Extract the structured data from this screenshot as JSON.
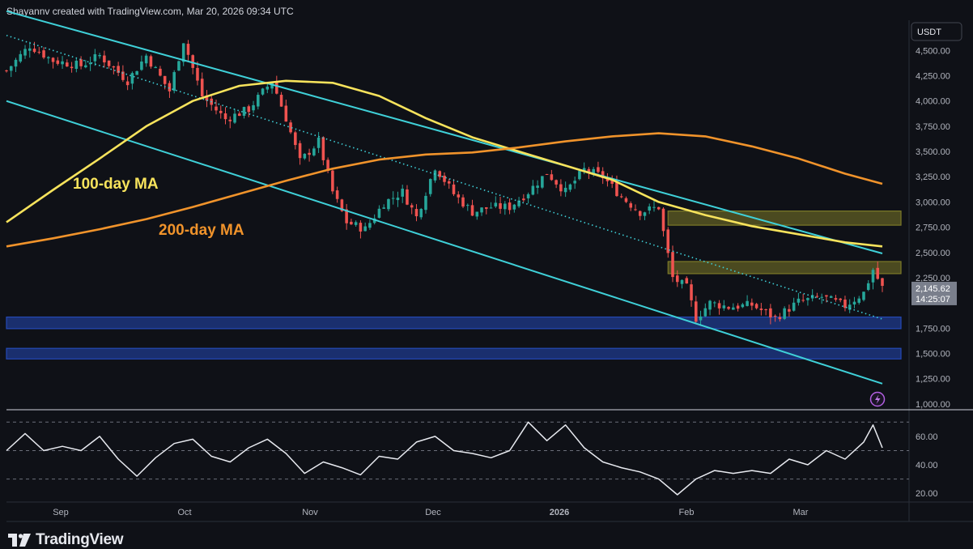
{
  "header": {
    "attribution": "Shayannv created with TradingView.com, Mar 20, 2026 09:34 UTC"
  },
  "brand": {
    "name": "TradingView",
    "icon": "tradingview-logo-icon"
  },
  "colors": {
    "background": "#0f1117",
    "candle_up": "#26a69a",
    "candle_down": "#ef5350",
    "ma100": "#f7e35c",
    "ma200": "#f0932b",
    "channel": "#3fd0d8",
    "zone_yellow": "#7d7a28",
    "zone_blue": "#2549b6",
    "rsi_line": "#e8eaf0",
    "price_badge": "#7a7f8c"
  },
  "chart_data": [
    {
      "type": "candlestick",
      "symbol_currency": "USDT",
      "x_labels": [
        "Sep",
        "Oct",
        "Nov",
        "Dec",
        "2026",
        "Feb",
        "Mar"
      ],
      "y_tick_labels": [
        "4,500.00",
        "4,250.00",
        "4,000.00",
        "3,750.00",
        "3,500.00",
        "3,250.00",
        "3,000.00",
        "2,750.00",
        "2,500.00",
        "2,250.00",
        "1,750.00",
        "1,500.00",
        "1,250.00",
        "1,000.00"
      ],
      "ylim": [
        950,
        4800
      ],
      "last_price": "2,145.62",
      "countdown": "14:25:07",
      "annotations": {
        "ma100_label": "100-day MA",
        "ma200_label": "200-day MA"
      },
      "close_path": [
        {
          "d": 0,
          "v": 4300
        },
        {
          "d": 5,
          "v": 4550
        },
        {
          "d": 10,
          "v": 4400
        },
        {
          "d": 16,
          "v": 4350
        },
        {
          "d": 20,
          "v": 4450
        },
        {
          "d": 26,
          "v": 4200
        },
        {
          "d": 30,
          "v": 4450
        },
        {
          "d": 35,
          "v": 4100
        },
        {
          "d": 38,
          "v": 4600
        },
        {
          "d": 42,
          "v": 4050
        },
        {
          "d": 47,
          "v": 3820
        },
        {
          "d": 52,
          "v": 3920
        },
        {
          "d": 57,
          "v": 4200
        },
        {
          "d": 60,
          "v": 3830
        },
        {
          "d": 63,
          "v": 3400
        },
        {
          "d": 67,
          "v": 3600
        },
        {
          "d": 70,
          "v": 3100
        },
        {
          "d": 73,
          "v": 2800
        },
        {
          "d": 77,
          "v": 2730
        },
        {
          "d": 81,
          "v": 2990
        },
        {
          "d": 85,
          "v": 3100
        },
        {
          "d": 88,
          "v": 2850
        },
        {
          "d": 92,
          "v": 3350
        },
        {
          "d": 96,
          "v": 3080
        },
        {
          "d": 100,
          "v": 2900
        },
        {
          "d": 104,
          "v": 2950
        },
        {
          "d": 108,
          "v": 2950
        },
        {
          "d": 112,
          "v": 3100
        },
        {
          "d": 116,
          "v": 3290
        },
        {
          "d": 120,
          "v": 3100
        },
        {
          "d": 124,
          "v": 3320
        },
        {
          "d": 128,
          "v": 3250
        },
        {
          "d": 132,
          "v": 3050
        },
        {
          "d": 136,
          "v": 2900
        },
        {
          "d": 140,
          "v": 2950
        },
        {
          "d": 141,
          "v": 2700
        },
        {
          "d": 143,
          "v": 2250
        },
        {
          "d": 146,
          "v": 2150
        },
        {
          "d": 148,
          "v": 1850
        },
        {
          "d": 151,
          "v": 2000
        },
        {
          "d": 155,
          "v": 1960
        },
        {
          "d": 160,
          "v": 1980
        },
        {
          "d": 165,
          "v": 1850
        },
        {
          "d": 170,
          "v": 2010
        },
        {
          "d": 175,
          "v": 2060
        },
        {
          "d": 180,
          "v": 1970
        },
        {
          "d": 184,
          "v": 2100
        },
        {
          "d": 186,
          "v": 2330
        },
        {
          "d": 188,
          "v": 2150
        }
      ],
      "series": [
        {
          "name": "100-day MA",
          "points": [
            {
              "d": 0,
              "v": 2800
            },
            {
              "d": 10,
              "v": 3120
            },
            {
              "d": 20,
              "v": 3430
            },
            {
              "d": 30,
              "v": 3750
            },
            {
              "d": 40,
              "v": 4000
            },
            {
              "d": 50,
              "v": 4150
            },
            {
              "d": 60,
              "v": 4200
            },
            {
              "d": 70,
              "v": 4180
            },
            {
              "d": 80,
              "v": 4050
            },
            {
              "d": 90,
              "v": 3830
            },
            {
              "d": 100,
              "v": 3640
            },
            {
              "d": 110,
              "v": 3500
            },
            {
              "d": 120,
              "v": 3360
            },
            {
              "d": 130,
              "v": 3220
            },
            {
              "d": 140,
              "v": 3000
            },
            {
              "d": 150,
              "v": 2870
            },
            {
              "d": 160,
              "v": 2760
            },
            {
              "d": 170,
              "v": 2680
            },
            {
              "d": 180,
              "v": 2600
            },
            {
              "d": 188,
              "v": 2560
            }
          ]
        },
        {
          "name": "200-day MA",
          "points": [
            {
              "d": 0,
              "v": 2560
            },
            {
              "d": 10,
              "v": 2640
            },
            {
              "d": 20,
              "v": 2730
            },
            {
              "d": 30,
              "v": 2830
            },
            {
              "d": 40,
              "v": 2950
            },
            {
              "d": 50,
              "v": 3080
            },
            {
              "d": 60,
              "v": 3210
            },
            {
              "d": 70,
              "v": 3330
            },
            {
              "d": 80,
              "v": 3420
            },
            {
              "d": 90,
              "v": 3470
            },
            {
              "d": 100,
              "v": 3490
            },
            {
              "d": 110,
              "v": 3540
            },
            {
              "d": 120,
              "v": 3600
            },
            {
              "d": 130,
              "v": 3650
            },
            {
              "d": 140,
              "v": 3680
            },
            {
              "d": 150,
              "v": 3650
            },
            {
              "d": 160,
              "v": 3550
            },
            {
              "d": 170,
              "v": 3430
            },
            {
              "d": 180,
              "v": 3280
            },
            {
              "d": 188,
              "v": 3180
            }
          ]
        }
      ],
      "channel_lines": [
        {
          "from": {
            "d": 0,
            "v": 4890
          },
          "to": {
            "d": 188,
            "v": 2490
          },
          "style": "solid"
        },
        {
          "from": {
            "d": 0,
            "v": 4000
          },
          "to": {
            "d": 188,
            "v": 1200
          },
          "style": "solid"
        },
        {
          "from": {
            "d": 0,
            "v": 4650
          },
          "to": {
            "d": 188,
            "v": 1840
          },
          "style": "dotted"
        }
      ],
      "zones": [
        {
          "kind": "resistance",
          "from_d": 142,
          "to_d": 192,
          "low": 2770,
          "high": 2910
        },
        {
          "kind": "resistance",
          "from_d": 142,
          "to_d": 192,
          "low": 2290,
          "high": 2410
        },
        {
          "kind": "support",
          "from_d": 0,
          "to_d": 192,
          "low": 1745,
          "high": 1860
        },
        {
          "kind": "support",
          "from_d": 0,
          "to_d": 192,
          "low": 1445,
          "high": 1550
        }
      ]
    },
    {
      "type": "line",
      "indicator": "rsi",
      "y_tick_labels": [
        "60.00",
        "40.00",
        "20.00"
      ],
      "ylim": [
        15,
        77
      ],
      "levels": [
        70,
        50,
        30
      ],
      "points": [
        {
          "d": 0,
          "v": 50
        },
        {
          "d": 4,
          "v": 62
        },
        {
          "d": 8,
          "v": 50
        },
        {
          "d": 12,
          "v": 53
        },
        {
          "d": 16,
          "v": 50
        },
        {
          "d": 20,
          "v": 60
        },
        {
          "d": 24,
          "v": 44
        },
        {
          "d": 28,
          "v": 32
        },
        {
          "d": 32,
          "v": 45
        },
        {
          "d": 36,
          "v": 55
        },
        {
          "d": 40,
          "v": 58
        },
        {
          "d": 44,
          "v": 46
        },
        {
          "d": 48,
          "v": 42
        },
        {
          "d": 52,
          "v": 52
        },
        {
          "d": 56,
          "v": 58
        },
        {
          "d": 60,
          "v": 48
        },
        {
          "d": 64,
          "v": 34
        },
        {
          "d": 68,
          "v": 42
        },
        {
          "d": 72,
          "v": 38
        },
        {
          "d": 76,
          "v": 33
        },
        {
          "d": 80,
          "v": 46
        },
        {
          "d": 84,
          "v": 44
        },
        {
          "d": 88,
          "v": 56
        },
        {
          "d": 92,
          "v": 60
        },
        {
          "d": 96,
          "v": 50
        },
        {
          "d": 100,
          "v": 48
        },
        {
          "d": 104,
          "v": 45
        },
        {
          "d": 108,
          "v": 50
        },
        {
          "d": 112,
          "v": 70
        },
        {
          "d": 116,
          "v": 57
        },
        {
          "d": 120,
          "v": 68
        },
        {
          "d": 124,
          "v": 52
        },
        {
          "d": 128,
          "v": 42
        },
        {
          "d": 132,
          "v": 38
        },
        {
          "d": 136,
          "v": 35
        },
        {
          "d": 140,
          "v": 30
        },
        {
          "d": 144,
          "v": 19
        },
        {
          "d": 148,
          "v": 30
        },
        {
          "d": 152,
          "v": 36
        },
        {
          "d": 156,
          "v": 34
        },
        {
          "d": 160,
          "v": 36
        },
        {
          "d": 164,
          "v": 34
        },
        {
          "d": 168,
          "v": 44
        },
        {
          "d": 172,
          "v": 40
        },
        {
          "d": 176,
          "v": 50
        },
        {
          "d": 180,
          "v": 44
        },
        {
          "d": 184,
          "v": 56
        },
        {
          "d": 186,
          "v": 68
        },
        {
          "d": 188,
          "v": 52
        }
      ]
    }
  ]
}
